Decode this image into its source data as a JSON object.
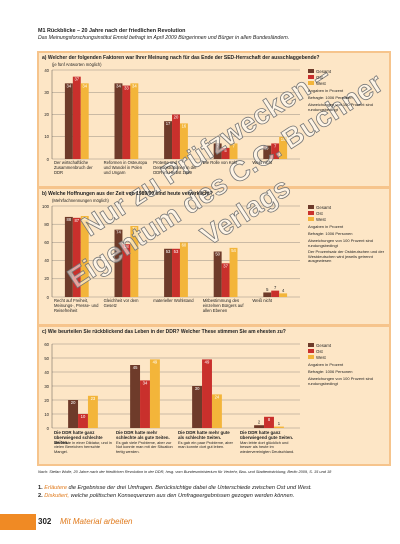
{
  "header": {
    "label": "M1",
    "title": "Rückblicke – 20 Jahre nach der friedlichen Revolution",
    "subtitle": "Das Meinungsforschungsinstitut Emnid befragt im April 2009 Bürgerinnen und Bürger in allen Bundesländern."
  },
  "chart_data": [
    {
      "type": "bar",
      "title": "a) Welcher der folgenden Faktoren war Ihrer Meinung nach für das Ende der SED-Herrschaft der ausschlaggebende?",
      "y_label": "(je fünf Antworten möglich)",
      "categories": [
        "Der wirtschaftliche Zusammenbruch der DDR",
        "Reformen in Osteuropa und Wandel in Polen und Ungarn",
        "Proteste und Demonstrationen in der DDR im Herbst 1989",
        "Die Rolle von Kohl",
        "Weiß nicht"
      ],
      "series": [
        {
          "name": "Gesamt",
          "color": "#6e3b2a",
          "values": [
            34,
            34,
            17,
            7,
            6
          ]
        },
        {
          "name": "Ost",
          "color": "#c9302c",
          "values": [
            37,
            33,
            20,
            5,
            7
          ]
        },
        {
          "name": "West",
          "color": "#f3b53a",
          "values": [
            34,
            34,
            16,
            7,
            10
          ]
        }
      ],
      "ylim": [
        0,
        40
      ],
      "yticks": [
        0,
        10,
        20,
        30,
        40
      ],
      "grid": true,
      "legend_notes": [
        "Angaben in Prozent",
        "Befragte: 1006 Personen",
        "Abweichungen von 100 Prozent sind rundungsbedingt"
      ]
    },
    {
      "type": "bar",
      "title": "b) Welche Hoffnungen aus der Zeit von 1989/90 sind heute verwirklicht?",
      "y_label": "(Mehrfachnennungen möglich)",
      "categories": [
        "Recht auf Freiheit, Meinungs-, Presse- und Reisefreiheit",
        "Gleichheit vor dem Gesetz",
        "materieller Wohlstand",
        "Mitbestimmung des einzelnen Bürgers auf allen Ebenen",
        "Weiß nicht"
      ],
      "series": [
        {
          "name": "Gesamt",
          "color": "#6e3b2a",
          "values": [
            88,
            74,
            53,
            50,
            5
          ]
        },
        {
          "name": "Ost",
          "color": "#c9302c",
          "values": [
            87,
            58,
            53,
            37,
            7
          ]
        },
        {
          "name": "West",
          "color": "#f3b53a",
          "values": [
            89,
            78,
            60,
            54,
            4
          ]
        }
      ],
      "ylim": [
        0,
        100
      ],
      "yticks": [
        0,
        20,
        40,
        60,
        80,
        100
      ],
      "grid": true,
      "legend_notes": [
        "Angaben in Prozent",
        "Befragte: 1006 Personen",
        "Abweichungen von 100 Prozent sind rundungsbedingt",
        "Der Prozentsatz der Ostdeutschen und der Westdeutschen wird jeweils getrennt ausgewiesen"
      ]
    },
    {
      "type": "bar",
      "title": "c) Wie beurteilen Sie rückblickend das Leben in der DDR? Welcher These stimmen Sie am ehesten zu?",
      "y_label": "",
      "categories": [
        "Die DDR hatte ganz überwiegend schlechte Seiten.",
        "Die DDR hatte mehr schlechte als gute Seiten.",
        "Die DDR hatte mehr gute als schlechte Seiten.",
        "Die DDR hatte ganz überwiegend gute Seiten."
      ],
      "category_notes": [
        "Man lebte in einer Diktatur, und in vielen Bereichen herrschte Mangel.",
        "Es gab viele Probleme, aber zur Not konnte man mit der Situation fertig werden.",
        "Es gab ein paar Probleme, aber man konnte dort gut leben.",
        "Man lebte dort glücklich und besser als heute im wiedervereinigten Deutschland."
      ],
      "series": [
        {
          "name": "Gesamt",
          "color": "#6e3b2a",
          "values": [
            20,
            45,
            30,
            2
          ]
        },
        {
          "name": "Ost",
          "color": "#c9302c",
          "values": [
            10,
            34,
            49,
            8
          ]
        },
        {
          "name": "West",
          "color": "#f3b53a",
          "values": [
            23,
            49,
            24,
            1
          ]
        }
      ],
      "ylim": [
        0,
        60
      ],
      "yticks": [
        0,
        10,
        20,
        30,
        40,
        50,
        60
      ],
      "grid": true,
      "legend_notes": [
        "Angaben in Prozent",
        "Befragte: 1006 Personen",
        "Abweichungen von 100 Prozent sind rundungsbedingt"
      ]
    }
  ],
  "watermark": [
    "Nur zu Prüfzwecken –",
    "Eigentum des C.C. Buchner Verlags"
  ],
  "source": "Nach: Stefan Wolle, 20 Jahre nach der friedlichen Revolution in der DDR, hrsg. vom Bundesministerium für Verkehr, Bau- und Stadtentwicklung, Berlin 2009, S. 15 und 18",
  "tasks": [
    {
      "number": "1.",
      "operator": "Erläutere",
      "text": "die Ergebnisse der drei Umfragen. Berücksichtige dabei die Unterschiede zwischen Ost und West."
    },
    {
      "number": "2.",
      "operator": "Diskutiert,",
      "text": "welche politischen Konsequenzen aus den Umfrageergebnissen gezogen werden können."
    }
  ],
  "footer": {
    "page": "302",
    "section": "Mit Material arbeiten"
  }
}
